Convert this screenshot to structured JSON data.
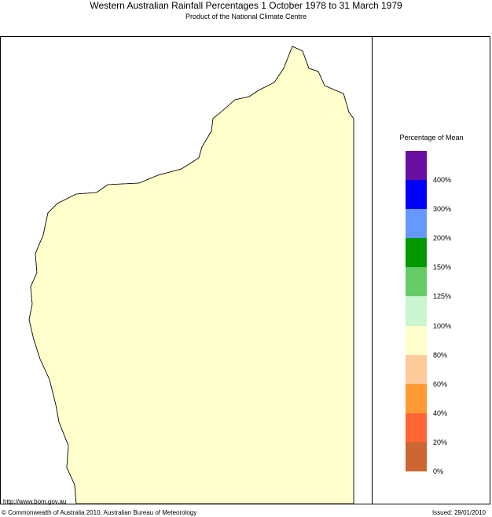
{
  "header": {
    "title": "Western Australian Rainfall Percentages 1 October 1978 to 31 March 1979",
    "subtitle": "Product of the National Climate Centre"
  },
  "legend": {
    "title": "Percentage of Mean",
    "colors": [
      "#6a0fa3",
      "#0000ff",
      "#6699ff",
      "#009900",
      "#66cc66",
      "#c9f5d0",
      "#ffffcc",
      "#fccb99",
      "#ff9933",
      "#ff6633",
      "#cc6633"
    ],
    "ticks": [
      "400%",
      "300%",
      "200%",
      "150%",
      "125%",
      "100%",
      "80%",
      "60%",
      "40%",
      "20%",
      "0%"
    ]
  },
  "map_colors": {
    "p80_100": "#ffffcc",
    "p60_80": "#fccb99",
    "p40_60": "#ff9933",
    "p20_40": "#ff6633",
    "p0_20": "#cc6633",
    "p100_125": "#c9f5d0",
    "p125_150": "#66cc66",
    "p150_200": "#009900",
    "p200_300": "#6699ff",
    "p300_400": "#0000ff"
  },
  "footer": {
    "url": "http://www.bom.gov.au",
    "copyright": "© Commonwealth of Australia 2010, Australian Bureau of Meteorology",
    "issued": "Issued: 29/01/2010"
  }
}
